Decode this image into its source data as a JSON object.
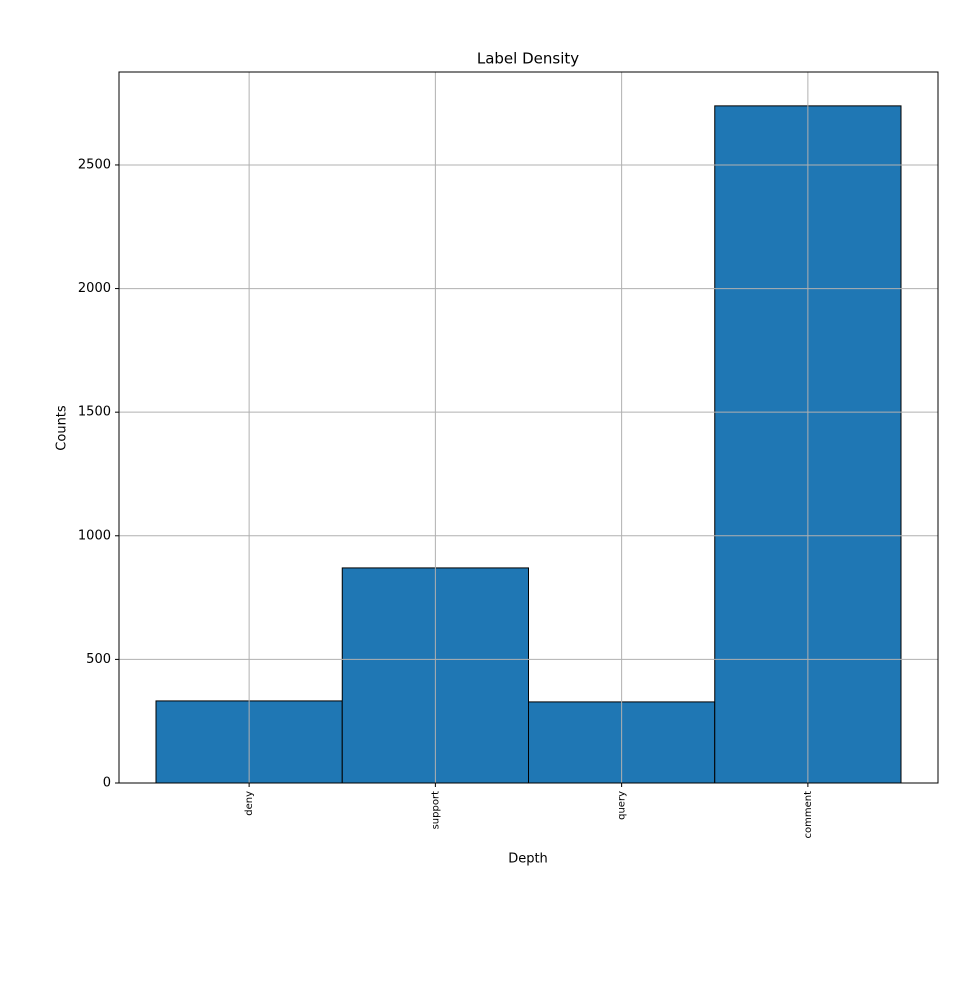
{
  "chart_data": {
    "type": "bar",
    "title": "Label Density",
    "x_label": "Depth",
    "y_label": "Counts",
    "categories": [
      "deny",
      "support",
      "query",
      "comment"
    ],
    "values": [
      332,
      870,
      328,
      2739
    ],
    "color": "#1f77b4",
    "edge_color": "#000000",
    "ylim": [
      0,
      2876
    ],
    "yticks": [
      0,
      500,
      1000,
      1500,
      2000,
      2500
    ],
    "grid": true
  }
}
